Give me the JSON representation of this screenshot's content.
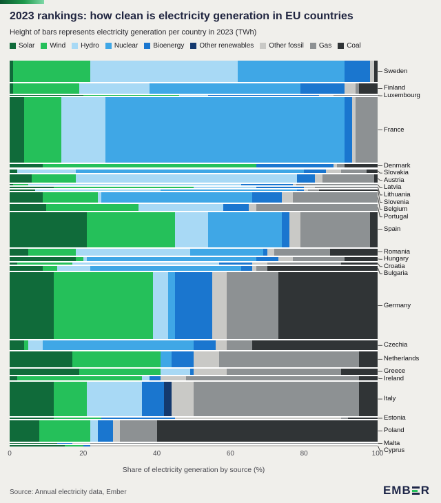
{
  "chart_data": {
    "type": "bar",
    "variant": "stacked-horizontal-mekko",
    "title": "2023 rankings: how clean is electricity generation in EU countries",
    "subtitle": "Height of bars represents electricity generation per country in 2023 (TWh)",
    "xlabel": "Share of electricity generation by source (%)",
    "xlim": [
      0,
      100
    ],
    "x_ticks": [
      0,
      20,
      40,
      60,
      80,
      100
    ],
    "legend_position": "top",
    "grid": false,
    "sources": [
      "Solar",
      "Wind",
      "Hydro",
      "Nuclear",
      "Bioenergy",
      "Other renewables",
      "Other fossil",
      "Gas",
      "Coal"
    ],
    "colors": {
      "Solar": "#106b3a",
      "Wind": "#25c05a",
      "Hydro": "#a8d9f5",
      "Nuclear": "#3fa7e6",
      "Bioenergy": "#1a76cf",
      "Other renewables": "#14396e",
      "Other fossil": "#c9c9c6",
      "Gas": "#8d9193",
      "Coal": "#303436"
    },
    "countries": [
      {
        "name": "Sweden",
        "twh": 163,
        "shares": [
          1,
          21,
          40,
          29,
          7,
          0,
          1,
          0,
          1
        ]
      },
      {
        "name": "Finland",
        "twh": 78,
        "shares": [
          1,
          18,
          19,
          41,
          12,
          0,
          3,
          1,
          5
        ]
      },
      {
        "name": "Luxembourg",
        "twh": 1,
        "shares": [
          20,
          26,
          8,
          0,
          30,
          0,
          4,
          12,
          0
        ]
      },
      {
        "name": "France",
        "twh": 495,
        "shares": [
          4,
          10,
          12,
          65,
          2,
          0,
          1,
          6,
          0
        ]
      },
      {
        "name": "Denmark",
        "twh": 31,
        "shares": [
          9,
          58,
          0,
          0,
          21,
          0,
          1,
          2,
          9
        ]
      },
      {
        "name": "Slovakia",
        "twh": 27,
        "shares": [
          2,
          0,
          16,
          62,
          6,
          0,
          4,
          7,
          3
        ]
      },
      {
        "name": "Austria",
        "twh": 67,
        "shares": [
          6,
          12,
          60,
          0,
          5,
          0,
          2,
          14,
          1
        ]
      },
      {
        "name": "Latvia",
        "twh": 6,
        "shares": [
          1,
          4,
          58,
          0,
          14,
          0,
          1,
          22,
          0
        ]
      },
      {
        "name": "Lithuania",
        "twh": 5,
        "shares": [
          12,
          38,
          17,
          0,
          13,
          0,
          3,
          17,
          0
        ]
      },
      {
        "name": "Slovenia",
        "twh": 13,
        "shares": [
          7,
          0,
          34,
          37,
          2,
          0,
          1,
          3,
          16
        ]
      },
      {
        "name": "Belgium",
        "twh": 79,
        "shares": [
          9,
          15,
          1,
          41,
          8,
          0,
          3,
          23,
          0
        ]
      },
      {
        "name": "Portugal",
        "twh": 51,
        "shares": [
          10,
          25,
          23,
          0,
          7,
          0,
          2,
          33,
          0
        ]
      },
      {
        "name": "Spain",
        "twh": 267,
        "shares": [
          21,
          24,
          9,
          20,
          2,
          0,
          3,
          19,
          2
        ]
      },
      {
        "name": "Romania",
        "twh": 53,
        "shares": [
          5,
          13,
          31,
          20,
          1,
          0,
          2,
          15,
          13
        ]
      },
      {
        "name": "Hungary",
        "twh": 34,
        "shares": [
          18,
          2,
          1,
          46,
          6,
          0,
          4,
          14,
          9
        ]
      },
      {
        "name": "Croatia",
        "twh": 14,
        "shares": [
          2,
          15,
          40,
          0,
          9,
          0,
          4,
          20,
          10
        ]
      },
      {
        "name": "Bulgaria",
        "twh": 36,
        "shares": [
          9,
          4,
          9,
          41,
          3,
          0,
          1,
          3,
          30
        ]
      },
      {
        "name": "Germany",
        "twh": 514,
        "shares": [
          12,
          27,
          4,
          2,
          10,
          0,
          4,
          14,
          27
        ]
      },
      {
        "name": "Czechia",
        "twh": 72,
        "shares": [
          4,
          1,
          4,
          41,
          6,
          0,
          3,
          7,
          34
        ]
      },
      {
        "name": "Netherlands",
        "twh": 118,
        "shares": [
          17,
          24,
          0,
          3,
          6,
          0,
          7,
          38,
          5
        ]
      },
      {
        "name": "Greece",
        "twh": 47,
        "shares": [
          19,
          22,
          8,
          0,
          1,
          0,
          9,
          31,
          10
        ]
      },
      {
        "name": "Ireland",
        "twh": 34,
        "shares": [
          2,
          34,
          2,
          0,
          3,
          0,
          7,
          47,
          5
        ]
      },
      {
        "name": "Italy",
        "twh": 264,
        "shares": [
          12,
          9,
          15,
          0,
          6,
          2,
          6,
          45,
          5
        ]
      },
      {
        "name": "Estonia",
        "twh": 6,
        "shares": [
          12,
          13,
          0,
          0,
          20,
          0,
          45,
          2,
          8
        ]
      },
      {
        "name": "Poland",
        "twh": 163,
        "shares": [
          8,
          14,
          2,
          0,
          4,
          0,
          2,
          10,
          60
        ]
      },
      {
        "name": "Malta",
        "twh": 2,
        "shares": [
          13,
          0,
          0,
          0,
          4,
          0,
          5,
          78,
          0
        ]
      },
      {
        "name": "Cyprus",
        "twh": 5,
        "shares": [
          15,
          5,
          0,
          0,
          2,
          0,
          78,
          0,
          0
        ]
      }
    ]
  },
  "footer": {
    "source": "Source: Annual electricity data, Ember",
    "logo_prefix": "EMB",
    "logo_suffix": "R"
  }
}
